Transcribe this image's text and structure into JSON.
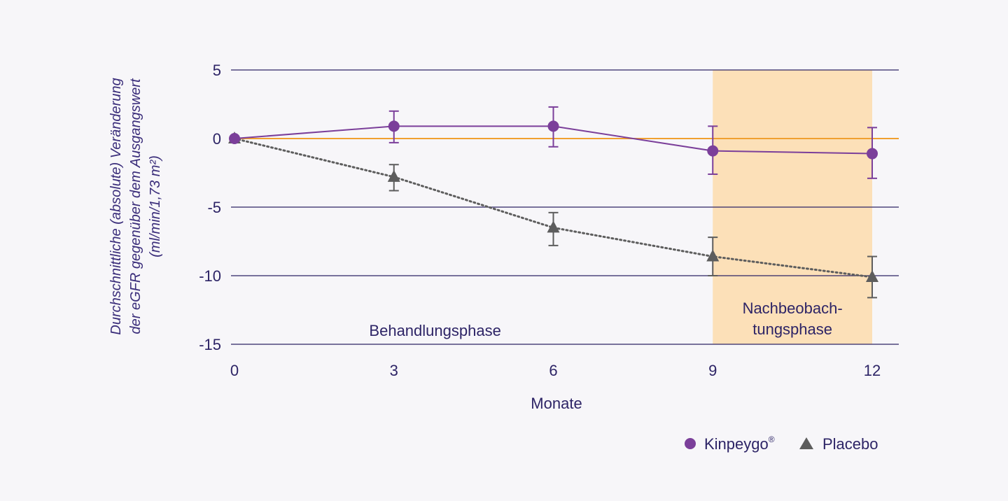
{
  "chart_data": {
    "type": "line",
    "xlabel": "Monate",
    "ylabel_lines": [
      "Durchschnittliche (absolute) Veränderung",
      "der eGFR gegenüber dem Ausgangswert",
      "(ml/min/1,73 m²)"
    ],
    "x_ticks": [
      0,
      3,
      6,
      9,
      12
    ],
    "y_ticks": [
      5,
      0,
      -5,
      -10,
      -15
    ],
    "x_tick_labels": [
      "0",
      "3",
      "6",
      "9",
      "12"
    ],
    "y_tick_labels": [
      "5",
      "0",
      "-5",
      "-10",
      "-15"
    ],
    "xlim": [
      0,
      12
    ],
    "ylim": [
      -15,
      5
    ],
    "grid": true,
    "reference_line": 0,
    "phases": [
      {
        "label_lines": [
          "Behandlungsphase"
        ],
        "from": 0,
        "to": 9,
        "shaded": false
      },
      {
        "label_lines": [
          "Nachbeobach-",
          "tungsphase"
        ],
        "from": 9,
        "to": 12,
        "shaded": true
      }
    ],
    "series": [
      {
        "name": "Kinpeygo",
        "name_suffix": "®",
        "marker": "circle",
        "line": "solid",
        "x": [
          0,
          3,
          6,
          9,
          12
        ],
        "values": [
          0,
          0.9,
          0.9,
          -0.9,
          -1.1
        ],
        "err_low": [
          0,
          -0.3,
          -0.6,
          -2.6,
          -2.9
        ],
        "err_high": [
          0,
          2.0,
          2.3,
          0.9,
          0.8
        ]
      },
      {
        "name": "Placebo",
        "name_suffix": "",
        "marker": "triangle",
        "line": "dotted",
        "x": [
          0,
          3,
          6,
          9,
          12
        ],
        "values": [
          0,
          -2.8,
          -6.5,
          -8.6,
          -10.1
        ],
        "err_low": [
          0,
          -3.8,
          -7.8,
          -10.0,
          -11.6
        ],
        "err_high": [
          0,
          -1.9,
          -5.4,
          -7.2,
          -8.6
        ]
      }
    ],
    "legend_position": "bottom-right"
  },
  "colors": {
    "kinpeygo": "#7b3f9a",
    "placebo": "#5d5d5d",
    "grid": "#2d2466",
    "zero_line": "#f0a030",
    "phase_shade": "#fce0b8",
    "text": "#2d2466"
  }
}
